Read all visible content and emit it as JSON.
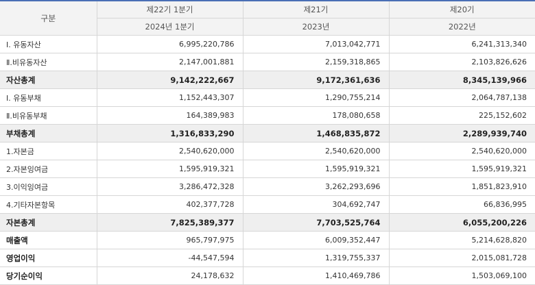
{
  "header": {
    "category": "구분",
    "periods": [
      {
        "label": "제22기 1분기",
        "date": "2024년 1분기"
      },
      {
        "label": "제21기",
        "date": "2023년"
      },
      {
        "label": "제20기",
        "date": "2022년"
      }
    ]
  },
  "rows": [
    {
      "label": "Ⅰ. 유동자산",
      "values": [
        "6,995,220,786",
        "7,013,042,771",
        "6,241,313,340"
      ],
      "style": "normal"
    },
    {
      "label": "Ⅱ.비유동자산",
      "values": [
        "2,147,001,881",
        "2,159,318,865",
        "2,103,826,626"
      ],
      "style": "normal"
    },
    {
      "label": "자산총계",
      "values": [
        "9,142,222,667",
        "9,172,361,636",
        "8,345,139,966"
      ],
      "style": "total"
    },
    {
      "label": "Ⅰ. 유동부채",
      "values": [
        "1,152,443,307",
        "1,290,755,214",
        "2,064,787,138"
      ],
      "style": "normal"
    },
    {
      "label": "Ⅱ.비유동부채",
      "values": [
        "164,389,983",
        "178,080,658",
        "225,152,602"
      ],
      "style": "normal"
    },
    {
      "label": "부채총계",
      "values": [
        "1,316,833,290",
        "1,468,835,872",
        "2,289,939,740"
      ],
      "style": "total"
    },
    {
      "label": "1.자본금",
      "values": [
        "2,540,620,000",
        "2,540,620,000",
        "2,540,620,000"
      ],
      "style": "normal"
    },
    {
      "label": "2.자본잉여금",
      "values": [
        "1,595,919,321",
        "1,595,919,321",
        "1,595,919,321"
      ],
      "style": "normal"
    },
    {
      "label": "3.이익잉여금",
      "values": [
        "3,286,472,328",
        "3,262,293,696",
        "1,851,823,910"
      ],
      "style": "normal"
    },
    {
      "label": "4.기타자본항목",
      "values": [
        "402,377,728",
        "304,692,747",
        "66,836,995"
      ],
      "style": "normal"
    },
    {
      "label": "자본총계",
      "values": [
        "7,825,389,377",
        "7,703,525,764",
        "6,055,200,226"
      ],
      "style": "total"
    },
    {
      "label": "매출액",
      "values": [
        "965,797,975",
        "6,009,352,447",
        "5,214,628,820"
      ],
      "style": "bold"
    },
    {
      "label": "영업이익",
      "values": [
        "-44,547,594",
        "1,319,755,337",
        "2,015,081,728"
      ],
      "style": "bold"
    },
    {
      "label": "당기순이익",
      "values": [
        "24,178,632",
        "1,410,469,786",
        "1,503,069,100"
      ],
      "style": "bold"
    }
  ]
}
